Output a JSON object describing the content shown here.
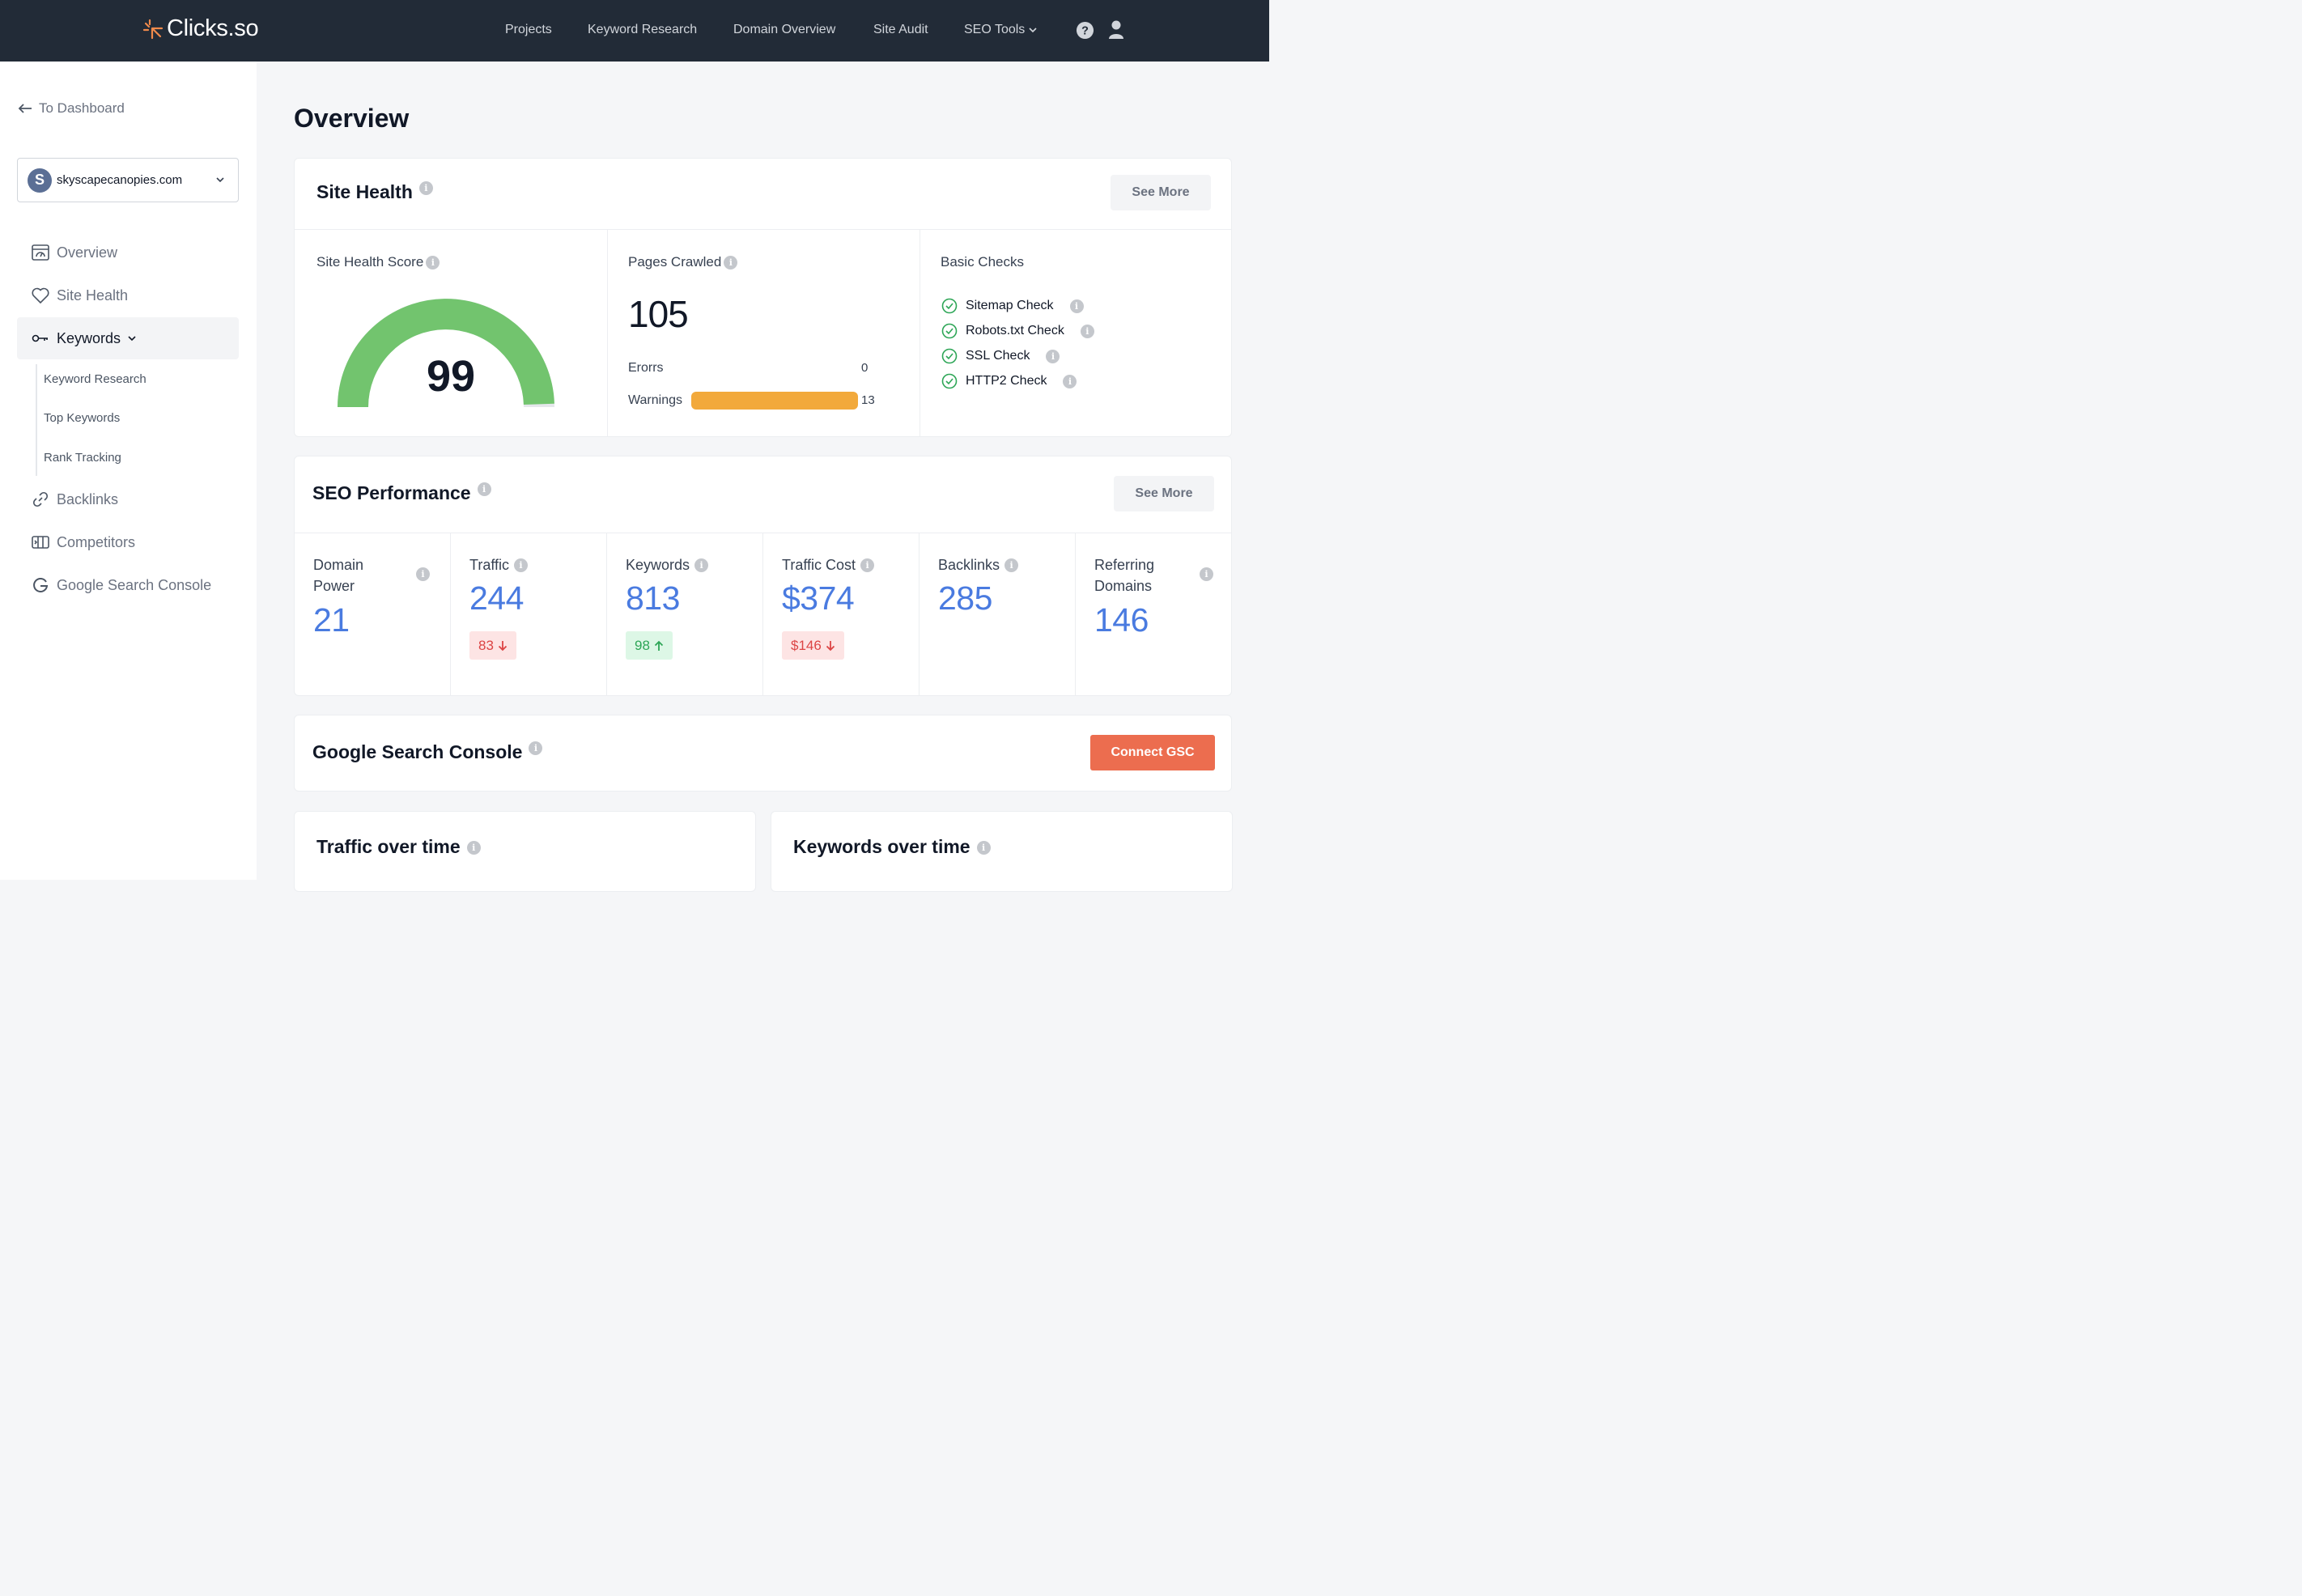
{
  "app": {
    "brand": "Clicks.so",
    "brand_color": "#f08a4b",
    "topbar_color": "#222b37"
  },
  "nav": {
    "projects": "Projects",
    "keyword_research": "Keyword Research",
    "domain_overview": "Domain Overview",
    "site_audit": "Site Audit",
    "seo_tools": "SEO Tools"
  },
  "sidebar": {
    "back": "To Dashboard",
    "site": {
      "initial": "S",
      "name": "skyscapecanopies.com"
    },
    "items": [
      {
        "label": "Overview",
        "icon": "dashboard-icon"
      },
      {
        "label": "Site Health",
        "icon": "heart-icon"
      },
      {
        "label": "Keywords",
        "icon": "key-icon"
      },
      {
        "label": "Backlinks",
        "icon": "link-icon"
      },
      {
        "label": "Competitors",
        "icon": "competitors-icon"
      },
      {
        "label": "Google Search Console",
        "icon": "google-icon"
      }
    ],
    "keyword_subitems": [
      "Keyword Research",
      "Top Keywords",
      "Rank Tracking"
    ]
  },
  "main": {
    "title": "Overview",
    "site_health": {
      "title": "Site Health",
      "see_more": "See More",
      "score_label": "Site Health Score",
      "score": "99",
      "score_fraction": 0.99,
      "gauge_color": "#72c46e",
      "pages_label": "Pages Crawled",
      "pages": "105",
      "errors_label": "Erorrs",
      "errors": "0",
      "warnings_label": "Warnings",
      "warnings": "13",
      "warning_color": "#f2a93b",
      "checks_label": "Basic Checks",
      "checks": [
        "Sitemap Check",
        "Robots.txt Check",
        "SSL Check",
        "HTTP2 Check"
      ]
    },
    "seo_performance": {
      "title": "SEO Performance",
      "see_more": "See More",
      "metrics": [
        {
          "label": "Domain Power",
          "value": "21"
        },
        {
          "label": "Traffic",
          "value": "244",
          "change": "83",
          "direction": "down"
        },
        {
          "label": "Keywords",
          "value": "813",
          "change": "98",
          "direction": "up"
        },
        {
          "label": "Traffic Cost",
          "value": "$374",
          "change": "$146",
          "direction": "down"
        },
        {
          "label": "Backlinks",
          "value": "285"
        },
        {
          "label": "Referring Domains",
          "value": "146"
        }
      ]
    },
    "gsc": {
      "title": "Google Search Console",
      "button": "Connect GSC",
      "button_color": "#ec6d4f"
    },
    "traffic_over_time": {
      "title": "Traffic over time"
    },
    "keywords_over_time": {
      "title": "Keywords over time"
    }
  }
}
